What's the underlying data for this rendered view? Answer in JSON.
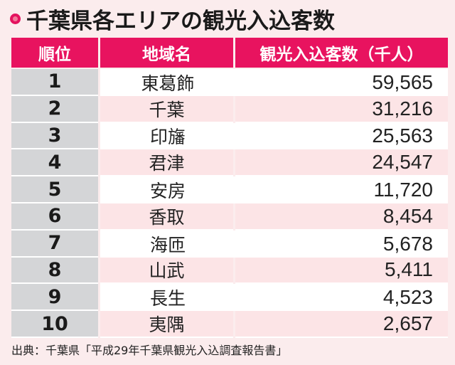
{
  "title": "千葉県各エリアの観光入込客数",
  "colors": {
    "accent": "#e8135f",
    "background": "#fbeced",
    "rank_cell": "#d4d5d7",
    "even_row": "#fce4e6",
    "odd_row": "#ffffff"
  },
  "table": {
    "headers": [
      "順位",
      "地域名",
      "観光入込客数（千人）"
    ],
    "rows": [
      {
        "rank": "1",
        "area": "東葛飾",
        "visitors": "59,565"
      },
      {
        "rank": "2",
        "area": "千葉",
        "visitors": "31,216"
      },
      {
        "rank": "3",
        "area": "印旛",
        "visitors": "25,563"
      },
      {
        "rank": "4",
        "area": "君津",
        "visitors": "24,547"
      },
      {
        "rank": "5",
        "area": "安房",
        "visitors": "11,720"
      },
      {
        "rank": "6",
        "area": "香取",
        "visitors": "8,454"
      },
      {
        "rank": "7",
        "area": "海匝",
        "visitors": "5,678"
      },
      {
        "rank": "8",
        "area": "山武",
        "visitors": "5,411"
      },
      {
        "rank": "9",
        "area": "長生",
        "visitors": "4,523"
      },
      {
        "rank": "10",
        "area": "夷隅",
        "visitors": "2,657"
      }
    ]
  },
  "source": "出典：千葉県「平成29年千葉県観光入込調査報告書」"
}
